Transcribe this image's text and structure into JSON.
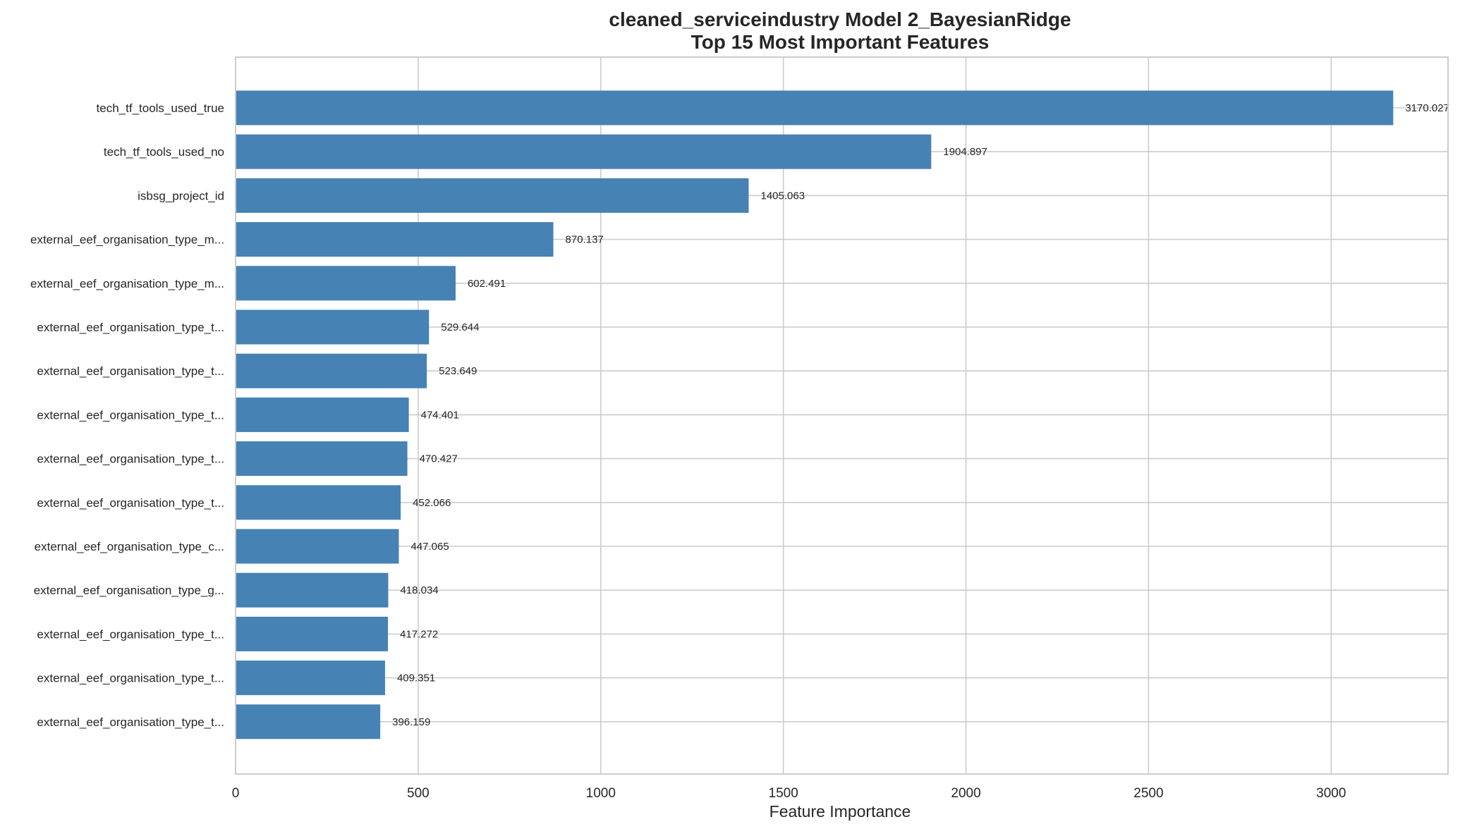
{
  "chart_data": {
    "type": "bar",
    "orientation": "horizontal",
    "title": "cleaned_serviceindustry Model 2_BayesianRidge",
    "subtitle": "Top 15 Most Important Features",
    "xlabel": "Feature Importance",
    "ylabel": "",
    "xlim": [
      0,
      3320
    ],
    "xticks": [
      0,
      500,
      1000,
      1500,
      2000,
      2500,
      3000
    ],
    "grid": true,
    "legend": "none",
    "bar_color": "#4682b4",
    "categories": [
      "tech_tf_tools_used_true",
      "tech_tf_tools_used_no",
      "isbsg_project_id",
      "external_eef_organisation_type_m...",
      "external_eef_organisation_type_m...",
      "external_eef_organisation_type_t...",
      "external_eef_organisation_type_t...",
      "external_eef_organisation_type_t...",
      "external_eef_organisation_type_t...",
      "external_eef_organisation_type_t...",
      "external_eef_organisation_type_c...",
      "external_eef_organisation_type_g...",
      "external_eef_organisation_type_t...",
      "external_eef_organisation_type_t...",
      "external_eef_organisation_type_t..."
    ],
    "values": [
      3170.027,
      1904.897,
      1405.063,
      870.137,
      602.491,
      529.644,
      523.649,
      474.401,
      470.427,
      452.066,
      447.065,
      418.034,
      417.272,
      409.351,
      396.159
    ],
    "value_labels": [
      "3170.027",
      "1904.897",
      "1405.063",
      "870.137",
      "602.491",
      "529.644",
      "523.649",
      "474.401",
      "470.427",
      "452.066",
      "447.065",
      "418.034",
      "417.272",
      "409.351",
      "396.159"
    ]
  }
}
